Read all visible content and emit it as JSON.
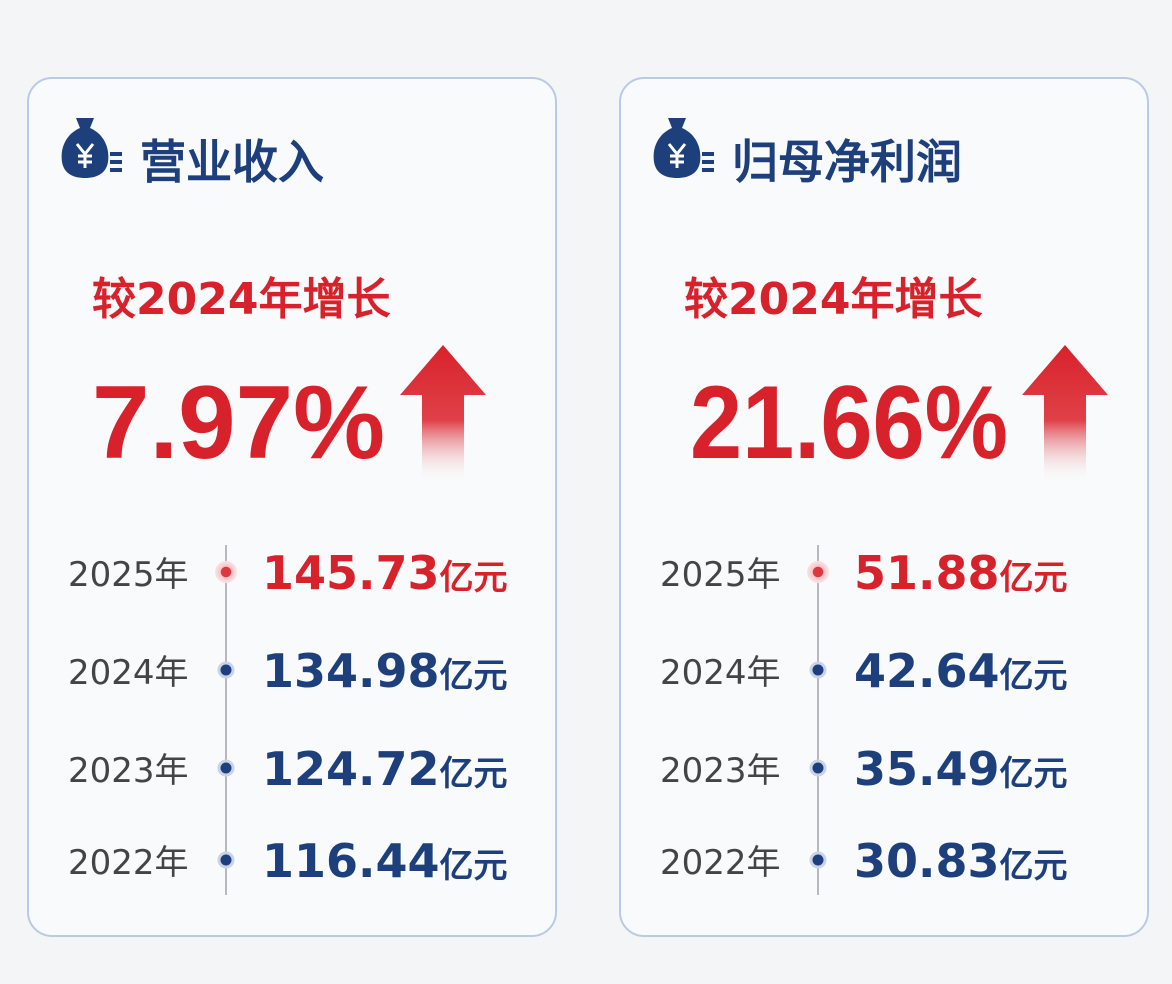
{
  "cards": [
    {
      "title": "营业收入",
      "growth_label": "较2024年增长",
      "growth": "7.97%",
      "rows": [
        {
          "year": "2025年",
          "value": "145.73",
          "unit": "亿元"
        },
        {
          "year": "2024年",
          "value": "134.98",
          "unit": "亿元"
        },
        {
          "year": "2023年",
          "value": "124.72",
          "unit": "亿元"
        },
        {
          "year": "2022年",
          "value": "116.44",
          "unit": "亿元"
        }
      ]
    },
    {
      "title": "归母净利润",
      "growth_label": "较2024年增长",
      "growth": "21.66%",
      "rows": [
        {
          "year": "2025年",
          "value": "51.88",
          "unit": "亿元"
        },
        {
          "year": "2024年",
          "value": "42.64",
          "unit": "亿元"
        },
        {
          "year": "2023年",
          "value": "35.49",
          "unit": "亿元"
        },
        {
          "year": "2022年",
          "value": "30.83",
          "unit": "亿元"
        }
      ]
    }
  ]
}
